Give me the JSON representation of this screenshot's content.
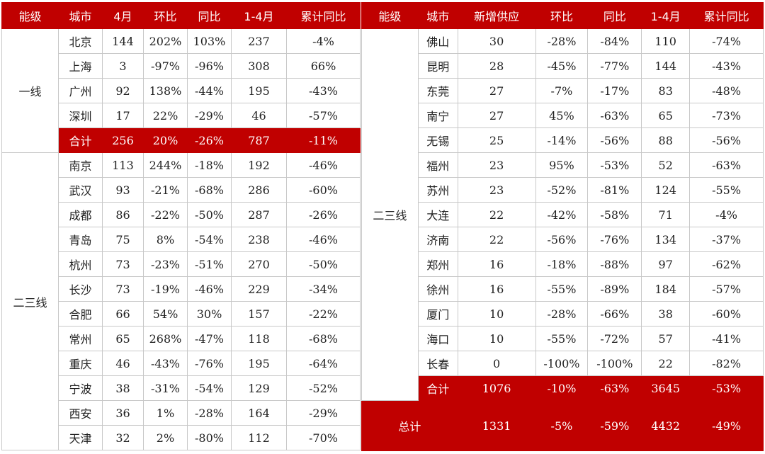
{
  "left_table": {
    "headers": [
      "能级",
      "城市",
      "4月",
      "环比",
      "同比",
      "1-4月",
      "累计同比"
    ],
    "groups": [
      {
        "tier": "一线",
        "rows": [
          [
            "北京",
            "144",
            "202%",
            "103%",
            "237",
            "-4%"
          ],
          [
            "上海",
            "3",
            "-97%",
            "-96%",
            "308",
            "66%"
          ],
          [
            "广州",
            "92",
            "138%",
            "-44%",
            "195",
            "-43%"
          ],
          [
            "深圳",
            "17",
            "22%",
            "-29%",
            "46",
            "-57%"
          ]
        ],
        "subtotal": [
          "合计",
          "256",
          "20%",
          "-26%",
          "787",
          "-11%"
        ]
      },
      {
        "tier": "二三线",
        "rows": [
          [
            "南京",
            "113",
            "244%",
            "-18%",
            "192",
            "-46%"
          ],
          [
            "武汉",
            "93",
            "-21%",
            "-68%",
            "286",
            "-60%"
          ],
          [
            "成都",
            "86",
            "-22%",
            "-50%",
            "287",
            "-26%"
          ],
          [
            "青岛",
            "75",
            "8%",
            "-54%",
            "238",
            "-46%"
          ],
          [
            "杭州",
            "73",
            "-23%",
            "-51%",
            "270",
            "-50%"
          ],
          [
            "长沙",
            "73",
            "-19%",
            "-46%",
            "229",
            "-34%"
          ],
          [
            "合肥",
            "66",
            "54%",
            "30%",
            "157",
            "-22%"
          ],
          [
            "常州",
            "65",
            "268%",
            "-47%",
            "118",
            "-68%"
          ],
          [
            "重庆",
            "46",
            "-43%",
            "-76%",
            "195",
            "-64%"
          ],
          [
            "宁波",
            "38",
            "-31%",
            "-54%",
            "129",
            "-52%"
          ],
          [
            "西安",
            "36",
            "1%",
            "-28%",
            "164",
            "-29%"
          ],
          [
            "天津",
            "32",
            "2%",
            "-80%",
            "112",
            "-70%"
          ]
        ]
      }
    ]
  },
  "right_table": {
    "headers": [
      "能级",
      "城市",
      "新增供应",
      "环比",
      "同比",
      "1-4月",
      "累计同比"
    ],
    "tier": "二三线",
    "rows": [
      [
        "佛山",
        "30",
        "-28%",
        "-84%",
        "110",
        "-74%"
      ],
      [
        "昆明",
        "28",
        "-45%",
        "-77%",
        "144",
        "-43%"
      ],
      [
        "东莞",
        "27",
        "-7%",
        "-17%",
        "83",
        "-48%"
      ],
      [
        "南宁",
        "27",
        "45%",
        "-63%",
        "65",
        "-73%"
      ],
      [
        "无锡",
        "25",
        "-14%",
        "-56%",
        "88",
        "-56%"
      ],
      [
        "福州",
        "23",
        "95%",
        "-53%",
        "52",
        "-63%"
      ],
      [
        "苏州",
        "23",
        "-52%",
        "-81%",
        "124",
        "-55%"
      ],
      [
        "大连",
        "22",
        "-42%",
        "-58%",
        "71",
        "-4%"
      ],
      [
        "济南",
        "22",
        "-56%",
        "-76%",
        "134",
        "-37%"
      ],
      [
        "郑州",
        "16",
        "-18%",
        "-88%",
        "97",
        "-62%"
      ],
      [
        "徐州",
        "16",
        "-55%",
        "-89%",
        "184",
        "-57%"
      ],
      [
        "厦门",
        "10",
        "-28%",
        "-66%",
        "38",
        "-60%"
      ],
      [
        "海口",
        "10",
        "-55%",
        "-72%",
        "57",
        "-41%"
      ],
      [
        "长春",
        "0",
        "-100%",
        "-100%",
        "22",
        "-82%"
      ]
    ],
    "subtotal": [
      "合计",
      "1076",
      "-10%",
      "-63%",
      "3645",
      "-53%"
    ],
    "total": [
      "总计",
      "1331",
      "-5%",
      "-59%",
      "4432",
      "-49%"
    ]
  }
}
